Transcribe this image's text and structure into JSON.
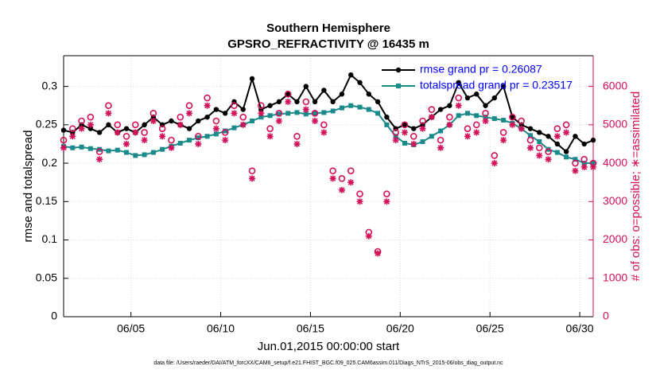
{
  "chart_data": {
    "type": "line",
    "title": "Southern Hemisphere",
    "subtitle": "GPSRO_REFRACTIVITY @ 16435 m",
    "xlabel": "Jun.01,2015 00:00:00 start",
    "ylabel": "rmse and totalspread",
    "y2label": "# of obs: o=possible; ∗=assimilated",
    "footnote": "data file: /Users/raeder/DAI/ATM_forcXX/CAM6_setup/f.e21.FHIST_BGC.f09_025.CAM6assim.011/Diags_NTrS_2015-06/obs_diag_output.nc",
    "grid": true,
    "legend": "top-right",
    "xlim": [
      1.25,
      30.75
    ],
    "xticks": [
      {
        "value": 5,
        "label": "06/05"
      },
      {
        "value": 10,
        "label": "06/10"
      },
      {
        "value": 15,
        "label": "06/15"
      },
      {
        "value": 20,
        "label": "06/20"
      },
      {
        "value": 25,
        "label": "06/25"
      },
      {
        "value": 30,
        "label": "06/30"
      }
    ],
    "ylim": [
      0,
      0.34
    ],
    "yticks": [
      0,
      0.05,
      0.1,
      0.15,
      0.2,
      0.25,
      0.3
    ],
    "y2lim": [
      0,
      6800
    ],
    "y2ticks": [
      0,
      1000,
      2000,
      3000,
      4000,
      5000,
      6000
    ],
    "x": [
      1.25,
      1.75,
      2.25,
      2.75,
      3.25,
      3.75,
      4.25,
      4.75,
      5.25,
      5.75,
      6.25,
      6.75,
      7.25,
      7.75,
      8.25,
      8.75,
      9.25,
      9.75,
      10.25,
      10.75,
      11.25,
      11.75,
      12.25,
      12.75,
      13.25,
      13.75,
      14.25,
      14.75,
      15.25,
      15.75,
      16.25,
      16.75,
      17.25,
      17.75,
      18.25,
      18.75,
      19.25,
      19.75,
      20.25,
      20.75,
      21.25,
      21.75,
      22.25,
      22.75,
      23.25,
      23.75,
      24.25,
      24.75,
      25.25,
      25.75,
      26.25,
      26.75,
      27.25,
      27.75,
      28.25,
      28.75,
      29.25,
      29.75,
      30.25,
      30.75
    ],
    "series": [
      {
        "name": "rmse grand pr = 0.26087",
        "color": "#000000",
        "marker": "circle",
        "values": [
          0.243,
          0.24,
          0.25,
          0.245,
          0.24,
          0.25,
          0.24,
          0.245,
          0.24,
          0.25,
          0.26,
          0.25,
          0.255,
          0.25,
          0.245,
          0.255,
          0.26,
          0.27,
          0.265,
          0.28,
          0.27,
          0.31,
          0.27,
          0.275,
          0.28,
          0.29,
          0.28,
          0.3,
          0.28,
          0.295,
          0.28,
          0.29,
          0.315,
          0.305,
          0.29,
          0.28,
          0.26,
          0.245,
          0.25,
          0.245,
          0.25,
          0.26,
          0.27,
          0.275,
          0.305,
          0.285,
          0.29,
          0.275,
          0.285,
          0.3,
          0.26,
          0.25,
          0.245,
          0.24,
          0.235,
          0.225,
          0.215,
          0.235,
          0.225,
          0.23
        ]
      },
      {
        "name": "totalspread grand pr = 0.23517",
        "color": "#1a8a8a",
        "marker": "square",
        "values": [
          0.222,
          0.22,
          0.221,
          0.219,
          0.218,
          0.216,
          0.217,
          0.214,
          0.21,
          0.211,
          0.214,
          0.218,
          0.222,
          0.226,
          0.23,
          0.233,
          0.235,
          0.238,
          0.242,
          0.246,
          0.25,
          0.255,
          0.26,
          0.262,
          0.264,
          0.265,
          0.266,
          0.264,
          0.265,
          0.266,
          0.268,
          0.272,
          0.275,
          0.273,
          0.27,
          0.265,
          0.25,
          0.235,
          0.226,
          0.224,
          0.228,
          0.235,
          0.242,
          0.25,
          0.262,
          0.265,
          0.262,
          0.26,
          0.258,
          0.256,
          0.252,
          0.245,
          0.236,
          0.228,
          0.218,
          0.214,
          0.208,
          0.205,
          0.2,
          0.2
        ]
      },
      {
        "name": "possible",
        "color": "#d4105a",
        "marker": "open-circle",
        "axis": "y2",
        "values": [
          4600,
          4900,
          5100,
          5200,
          4300,
          5500,
          5000,
          4700,
          5000,
          4800,
          5300,
          4900,
          4600,
          5200,
          5500,
          4700,
          5700,
          5100,
          4800,
          5500,
          5200,
          3800,
          5500,
          4900,
          5300,
          5800,
          4700,
          5600,
          5300,
          5000,
          3800,
          3600,
          3800,
          3200,
          2200,
          1700,
          3200,
          4800,
          5000,
          4700,
          5100,
          5400,
          4600,
          5200,
          5700,
          4900,
          5000,
          5300,
          4200,
          4800,
          5200,
          5100,
          4600,
          4400,
          4300,
          4900,
          5000,
          4000,
          4100,
          4000
        ]
      },
      {
        "name": "assimilated",
        "color": "#d4105a",
        "marker": "star",
        "axis": "y2",
        "values": [
          4400,
          4700,
          4900,
          5000,
          4100,
          5300,
          4800,
          4500,
          4800,
          4600,
          5100,
          4700,
          4400,
          5000,
          5300,
          4500,
          5500,
          4900,
          4600,
          5300,
          5000,
          3600,
          5300,
          4700,
          5100,
          5600,
          4500,
          5400,
          5100,
          4800,
          3600,
          3300,
          3500,
          3000,
          2100,
          1650,
          3000,
          4600,
          4800,
          4500,
          4900,
          5200,
          4400,
          5000,
          5500,
          4700,
          4800,
          5100,
          4000,
          4600,
          5000,
          4900,
          4400,
          4200,
          4100,
          4700,
          4800,
          3800,
          3900,
          3900
        ]
      }
    ]
  }
}
